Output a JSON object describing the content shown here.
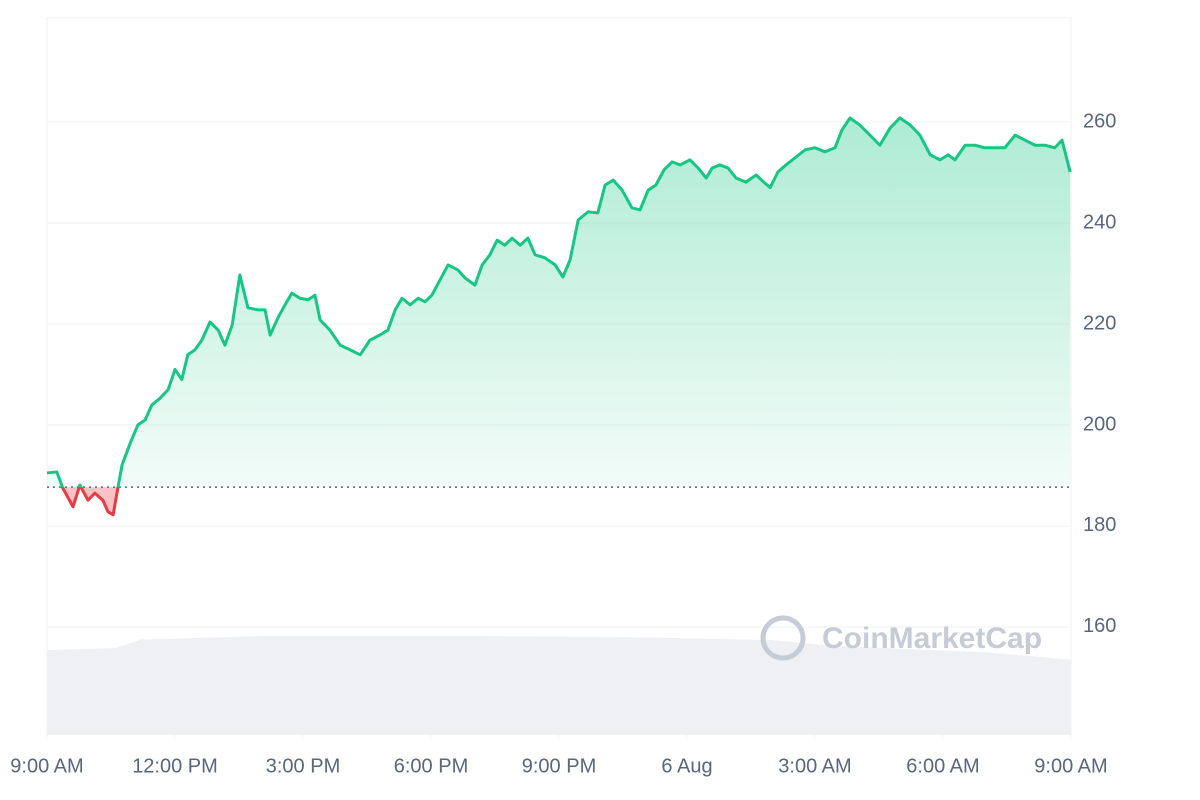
{
  "chart_data": {
    "type": "line",
    "watermark": "CoinMarketCap",
    "x": [
      0,
      0.23,
      0.37,
      0.61,
      0.77,
      0.96,
      1.12,
      1.31,
      1.43,
      1.55,
      1.66,
      1.76,
      1.95,
      2.13,
      2.3,
      2.46,
      2.65,
      2.84,
      3.0,
      3.16,
      3.3,
      3.47,
      3.63,
      3.82,
      4.01,
      4.17,
      4.34,
      4.52,
      4.71,
      4.95,
      5.11,
      5.23,
      5.41,
      5.58,
      5.74,
      5.93,
      6.12,
      6.28,
      6.4,
      6.63,
      6.87,
      7.1,
      7.34,
      7.57,
      7.8,
      7.99,
      8.16,
      8.32,
      8.51,
      8.7,
      8.86,
      9.02,
      9.21,
      9.4,
      9.63,
      9.8,
      10.03,
      10.2,
      10.38,
      10.55,
      10.73,
      10.9,
      11.09,
      11.27,
      11.44,
      11.67,
      11.91,
      12.09,
      12.26,
      12.45,
      12.68,
      12.91,
      13.08,
      13.27,
      13.48,
      13.71,
      13.9,
      14.09,
      14.27,
      14.46,
      14.65,
      14.84,
      15.07,
      15.26,
      15.45,
      15.59,
      15.77,
      15.96,
      16.15,
      16.38,
      16.62,
      16.8,
      16.95,
      17.13,
      17.32,
      17.53,
      17.77,
      18.0,
      18.23,
      18.47,
      18.63,
      18.82,
      19.05,
      19.29,
      19.52,
      19.76,
      19.99,
      20.23,
      20.46,
      20.7,
      20.93,
      21.12,
      21.28,
      21.52,
      21.75,
      21.98,
      22.22,
      22.45,
      22.69,
      22.92,
      23.16,
      23.39,
      23.62,
      23.79,
      23.98
    ],
    "values": [
      190.5,
      190.7,
      187.5,
      183.8,
      188.1,
      185.1,
      186.5,
      185.1,
      182.8,
      182.2,
      187.5,
      192.1,
      196.4,
      200,
      201,
      204,
      205.3,
      207,
      211,
      209,
      213.9,
      214.9,
      216.8,
      220.4,
      218.8,
      215.8,
      219.8,
      229.7,
      223.2,
      222.8,
      222.8,
      217.8,
      221.2,
      223.8,
      226.1,
      225.1,
      224.8,
      225.7,
      220.8,
      218.8,
      215.8,
      214.9,
      213.9,
      216.8,
      217.8,
      218.8,
      222.8,
      225.1,
      223.8,
      225.1,
      224.4,
      225.7,
      228.7,
      231.7,
      230.7,
      229.1,
      227.7,
      231.7,
      233.7,
      236.6,
      235.6,
      237,
      235.6,
      237,
      233.7,
      233.1,
      231.7,
      229.3,
      232.7,
      240.6,
      242.2,
      242,
      247.5,
      248.5,
      246.5,
      243,
      242.6,
      246.5,
      247.5,
      250.5,
      252.1,
      251.5,
      252.5,
      250.9,
      248.9,
      250.9,
      251.5,
      250.9,
      248.9,
      248.1,
      249.5,
      248.1,
      247,
      250.1,
      251.5,
      252.9,
      254.5,
      254.9,
      254.1,
      254.9,
      258.4,
      260.8,
      259.4,
      257.4,
      255.4,
      258.8,
      260.8,
      259.4,
      257.4,
      253.5,
      252.5,
      253.5,
      252.5,
      255.4,
      255.4,
      254.9,
      254.9,
      254.9,
      257.4,
      256.4,
      255.4,
      255.4,
      254.9,
      256.4,
      250.1
    ],
    "baseline": 187.7,
    "up_color": "#16c784",
    "down_color": "#ea3943",
    "volume": {
      "x": [
        0,
        1.6,
        2.2,
        5,
        10,
        13.5,
        17,
        18.5,
        22,
        24
      ],
      "values": [
        155.4,
        155.8,
        157.5,
        158.2,
        158.2,
        158,
        157.4,
        156.2,
        155,
        153.5
      ],
      "color": "#eef0f4"
    },
    "xlim": [
      0,
      24
    ],
    "xticks": [
      {
        "value": 0,
        "label": "9:00 AM"
      },
      {
        "value": 3,
        "label": "12:00 PM"
      },
      {
        "value": 6,
        "label": "3:00 PM"
      },
      {
        "value": 9,
        "label": "6:00 PM"
      },
      {
        "value": 12,
        "label": "9:00 PM"
      },
      {
        "value": 15,
        "label": "6 Aug"
      },
      {
        "value": 18,
        "label": "3:00 AM"
      },
      {
        "value": 21,
        "label": "6:00 AM"
      },
      {
        "value": 24,
        "label": "9:00 AM"
      }
    ],
    "ylim": [
      138.6,
      280.6
    ],
    "yticks": [
      160,
      180,
      200,
      220,
      240,
      260
    ],
    "grid": true
  }
}
